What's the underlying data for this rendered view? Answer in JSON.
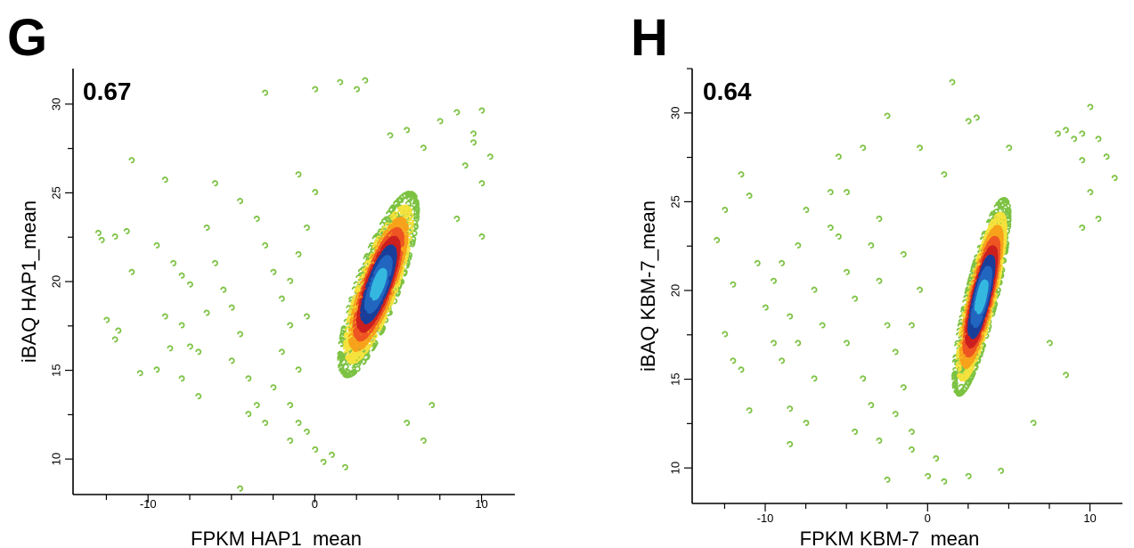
{
  "chart_data": [
    {
      "panel_label": "G",
      "type": "scatter",
      "annotation": "0.67",
      "xlabel": "FPKM HAP1_mean",
      "ylabel": "iBAQ HAP1_mean",
      "xlim": [
        -14.5,
        12
      ],
      "ylim": [
        8,
        32
      ],
      "xticks": [
        -10,
        0,
        10
      ],
      "yticks": [
        10,
        15,
        20,
        25,
        30
      ],
      "grid": false,
      "colormap": [
        "#2266c0",
        "#35b8e0",
        "#1a3f9a",
        "#cc1f1f",
        "#ee5522",
        "#f7a21b",
        "#f5e23c",
        "#7cc242"
      ],
      "density": {
        "center": [
          3.8,
          19.8
        ],
        "slope": 1.55,
        "spread_major": 4.6,
        "spread_minor": 1.35,
        "x_range": [
          -0.5,
          8.5
        ],
        "y_range": [
          9.5,
          27.5
        ]
      },
      "outliers": [
        [
          -13,
          22.7
        ],
        [
          -12.8,
          22.3
        ],
        [
          -12,
          22.5
        ],
        [
          -11.3,
          22.8
        ],
        [
          -11,
          20.5
        ],
        [
          -12.5,
          17.8
        ],
        [
          -11.8,
          17.2
        ],
        [
          -12,
          16.7
        ],
        [
          -10.5,
          14.8
        ],
        [
          -11,
          26.8
        ],
        [
          -9,
          25.7
        ],
        [
          -9.5,
          22
        ],
        [
          -8.5,
          21
        ],
        [
          -8,
          20.3
        ],
        [
          -7.5,
          19.8
        ],
        [
          -9,
          18
        ],
        [
          -8,
          17.5
        ],
        [
          -7,
          16
        ],
        [
          -9.5,
          15
        ],
        [
          -8,
          14.5
        ],
        [
          -7,
          13.5
        ],
        [
          -6,
          25.5
        ],
        [
          -6.5,
          23
        ],
        [
          -6,
          21
        ],
        [
          -5.5,
          19.5
        ],
        [
          -5,
          18.5
        ],
        [
          -4.5,
          17
        ],
        [
          -5,
          15.5
        ],
        [
          -4,
          14.5
        ],
        [
          -3.5,
          13
        ],
        [
          -4,
          12.5
        ],
        [
          -3,
          12
        ],
        [
          -4.5,
          24.5
        ],
        [
          -3.5,
          23.5
        ],
        [
          -3,
          22
        ],
        [
          -2.5,
          20.5
        ],
        [
          -2,
          19
        ],
        [
          -1.5,
          17.5
        ],
        [
          -2,
          16
        ],
        [
          -1,
          15
        ],
        [
          -2.5,
          14
        ],
        [
          -1.5,
          13
        ],
        [
          -1,
          12
        ],
        [
          -1.5,
          11
        ],
        [
          -3,
          30.6
        ],
        [
          0,
          30.8
        ],
        [
          1.5,
          31.2
        ],
        [
          2.5,
          30.8
        ],
        [
          -4.5,
          8.3
        ],
        [
          -0.5,
          11.5
        ],
        [
          0,
          10.5
        ],
        [
          0.5,
          9.8
        ],
        [
          1,
          10.2
        ],
        [
          1.8,
          9.5
        ],
        [
          -1,
          26
        ],
        [
          0,
          25
        ],
        [
          -0.5,
          23
        ],
        [
          -1,
          21.5
        ],
        [
          -0.5,
          18
        ],
        [
          -1.5,
          20
        ],
        [
          5.5,
          28.5
        ],
        [
          6.5,
          27.5
        ],
        [
          7.5,
          29
        ],
        [
          8.5,
          29.5
        ],
        [
          9.5,
          28.3
        ],
        [
          10,
          29.6
        ],
        [
          9.5,
          27.8
        ],
        [
          10.5,
          27
        ],
        [
          9,
          26.5
        ],
        [
          10,
          25.5
        ],
        [
          10,
          22.5
        ],
        [
          8.5,
          23.5
        ],
        [
          6.5,
          11
        ],
        [
          5.5,
          12
        ],
        [
          7,
          13
        ],
        [
          3,
          31.3
        ],
        [
          4.5,
          28.2
        ],
        [
          -7.5,
          16.3
        ],
        [
          -6.5,
          18.2
        ],
        [
          -8.7,
          16.2
        ]
      ]
    },
    {
      "panel_label": "H",
      "type": "scatter",
      "annotation": "0.64",
      "xlabel": "FPKM KBM-7_mean",
      "ylabel": "iBAQ KBM-7_mean",
      "xlim": [
        -14.5,
        12
      ],
      "ylim": [
        8,
        32.5
      ],
      "xticks": [
        -10,
        0,
        10
      ],
      "yticks": [
        10,
        15,
        20,
        25,
        30
      ],
      "grid": false,
      "colormap": [
        "#2266c0",
        "#35b8e0",
        "#1a3f9a",
        "#cc1f1f",
        "#ee5522",
        "#f7a21b",
        "#f5e23c",
        "#7cc242"
      ],
      "density": {
        "center": [
          3.3,
          19.6
        ],
        "slope": 1.9,
        "spread_major": 4.7,
        "spread_minor": 1.2,
        "x_range": [
          -0.5,
          8.5
        ],
        "y_range": [
          9.5,
          28
        ]
      },
      "outliers": [
        [
          -13,
          22.8
        ],
        [
          -12.5,
          24.5
        ],
        [
          -11.5,
          26.5
        ],
        [
          -11,
          25.3
        ],
        [
          -12,
          20.3
        ],
        [
          -12.5,
          17.5
        ],
        [
          -12,
          16
        ],
        [
          -11.5,
          15.5
        ],
        [
          -11,
          13.2
        ],
        [
          -10.5,
          21.5
        ],
        [
          -9.5,
          20.5
        ],
        [
          -10,
          19
        ],
        [
          -9.5,
          17
        ],
        [
          -9,
          16
        ],
        [
          -8.5,
          18.5
        ],
        [
          -8,
          17
        ],
        [
          -9,
          21.5
        ],
        [
          -8,
          22.5
        ],
        [
          -7.5,
          24.5
        ],
        [
          -7,
          20
        ],
        [
          -6.5,
          18
        ],
        [
          -7,
          15
        ],
        [
          -8.5,
          13.3
        ],
        [
          -7.5,
          12.5
        ],
        [
          -6,
          25.5
        ],
        [
          -5.5,
          23
        ],
        [
          -5,
          21
        ],
        [
          -4.5,
          19.5
        ],
        [
          -5,
          17
        ],
        [
          -4,
          15
        ],
        [
          -3.5,
          13.5
        ],
        [
          -4.5,
          12
        ],
        [
          -3,
          11.5
        ],
        [
          -3.5,
          22.5
        ],
        [
          -3,
          20.5
        ],
        [
          -2.5,
          18
        ],
        [
          -2,
          16.5
        ],
        [
          -1.5,
          14.5
        ],
        [
          -2,
          13
        ],
        [
          -1,
          12
        ],
        [
          -2.5,
          29.8
        ],
        [
          -0.5,
          28
        ],
        [
          1,
          26.5
        ],
        [
          1.5,
          31.7
        ],
        [
          2.5,
          29.5
        ],
        [
          3,
          29.7
        ],
        [
          5,
          28
        ],
        [
          -5.5,
          27.5
        ],
        [
          -4,
          28
        ],
        [
          -3,
          24
        ],
        [
          -8.5,
          11.3
        ],
        [
          -2.5,
          9.3
        ],
        [
          0,
          9.5
        ],
        [
          0.5,
          10.5
        ],
        [
          1,
          9.2
        ],
        [
          2.5,
          9.5
        ],
        [
          4.5,
          9.8
        ],
        [
          -1,
          11
        ],
        [
          8,
          28.8
        ],
        [
          8.5,
          29
        ],
        [
          9,
          28.5
        ],
        [
          9.5,
          28.8
        ],
        [
          10,
          30.3
        ],
        [
          10.5,
          28.5
        ],
        [
          11,
          27.5
        ],
        [
          11.5,
          26.3
        ],
        [
          9.5,
          27.3
        ],
        [
          10,
          25.5
        ],
        [
          10.5,
          24
        ],
        [
          9.5,
          23.5
        ],
        [
          8.5,
          15.2
        ],
        [
          7.5,
          17
        ],
        [
          6.5,
          12.5
        ],
        [
          -6,
          23.5
        ],
        [
          -5,
          25.5
        ],
        [
          -1.5,
          22
        ],
        [
          -0.5,
          20
        ],
        [
          -1,
          18
        ]
      ]
    }
  ]
}
